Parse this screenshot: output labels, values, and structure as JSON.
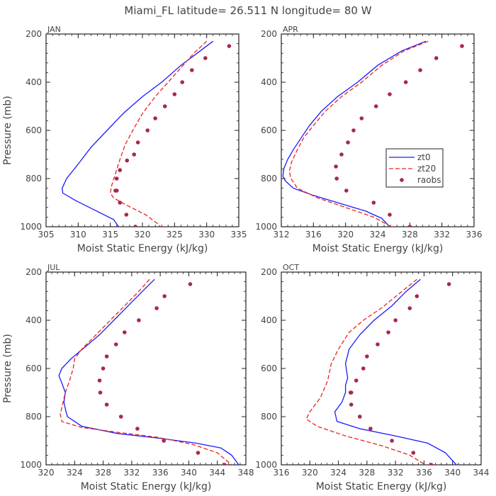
{
  "figure": {
    "title": "Miami_FL   latitude= 26.511 N longitude= 80 W",
    "series_names": [
      "zt0",
      "zt20",
      "raobs"
    ],
    "colors": {
      "zt0": "#1a1aff",
      "zt20": "#e8261e",
      "raobs": "#a8284a"
    }
  },
  "chart_data": [
    {
      "type": "line",
      "panel": "JAN",
      "title": "JAN",
      "xlabel": "Moist Static Energy (kJ/kg)",
      "ylabel": "Pressure (mb)",
      "xlim": [
        305,
        335
      ],
      "ylim": [
        1000,
        200
      ],
      "xticks": [
        305,
        310,
        315,
        320,
        325,
        330,
        335
      ],
      "yticks": [
        200,
        400,
        600,
        800,
        1000
      ],
      "legend": false,
      "series": [
        {
          "name": "zt0",
          "style": "solid",
          "x": [
            331.0,
            328.5,
            326.0,
            323.0,
            320.0,
            317.0,
            314.5,
            312.0,
            310.0,
            308.2,
            307.5,
            307.6,
            309.5,
            312.5,
            315.5,
            316.7
          ],
          "y": [
            230,
            280,
            330,
            400,
            460,
            530,
            600,
            670,
            740,
            800,
            840,
            860,
            890,
            930,
            970,
            1015
          ]
        },
        {
          "name": "zt20",
          "style": "dashed",
          "x": [
            330.0,
            328.0,
            326.0,
            324.0,
            322.0,
            320.0,
            318.5,
            317.3,
            316.5,
            315.8,
            315.2,
            315.0,
            315.5,
            317.5,
            320.5,
            322.5,
            323.2
          ],
          "y": [
            230,
            280,
            340,
            400,
            460,
            530,
            600,
            660,
            720,
            780,
            830,
            860,
            880,
            910,
            950,
            990,
            1015
          ]
        },
        {
          "name": "raobs",
          "style": "dots",
          "x": [
            333.5,
            329.8,
            327.7,
            326.2,
            325.0,
            323.5,
            322.0,
            320.8,
            319.3,
            318.7,
            317.6,
            316.5,
            316.0,
            315.8,
            316.0,
            316.5,
            317.5,
            318.9
          ],
          "y": [
            250,
            300,
            350,
            400,
            450,
            500,
            550,
            600,
            650,
            700,
            725,
            765,
            800,
            850,
            850,
            900,
            950,
            1000
          ]
        }
      ]
    },
    {
      "type": "line",
      "panel": "APR",
      "title": "APR",
      "xlabel": "Moist Static Energy (kJ/kg)",
      "ylabel": "",
      "xlim": [
        312,
        336
      ],
      "ylim": [
        1000,
        200
      ],
      "xticks": [
        312,
        316,
        320,
        324,
        328,
        332,
        336
      ],
      "yticks": [
        200,
        400,
        600,
        800,
        1000
      ],
      "legend": true,
      "legend_position": "right-middle",
      "series": [
        {
          "name": "zt0",
          "style": "solid",
          "x": [
            330.0,
            327.0,
            324.0,
            321.5,
            319.0,
            317.0,
            315.5,
            314.5,
            313.5,
            312.8,
            312.3,
            312.2,
            312.5,
            313.5,
            316.0,
            319.0,
            322.5,
            324.5,
            325.5
          ],
          "y": [
            230,
            270,
            330,
            400,
            460,
            520,
            580,
            630,
            680,
            720,
            760,
            790,
            810,
            840,
            870,
            900,
            935,
            965,
            1000
          ]
        },
        {
          "name": "zt20",
          "style": "dashed",
          "x": [
            330.3,
            327.3,
            324.5,
            322.0,
            319.5,
            317.5,
            316.0,
            314.8,
            314.0,
            313.3,
            313.0,
            313.2,
            314.0,
            316.5,
            320.0,
            323.5,
            326.5
          ],
          "y": [
            230,
            270,
            330,
            400,
            460,
            520,
            580,
            630,
            680,
            730,
            770,
            800,
            840,
            880,
            920,
            960,
            1015
          ]
        },
        {
          "name": "raobs",
          "style": "dots",
          "x": [
            334.5,
            331.3,
            329.3,
            327.5,
            325.5,
            323.8,
            322.0,
            321.0,
            320.3,
            319.5,
            318.8,
            318.9,
            320.1,
            323.5,
            325.5,
            328.0
          ],
          "y": [
            250,
            300,
            350,
            400,
            450,
            500,
            550,
            600,
            650,
            700,
            750,
            800,
            850,
            900,
            950,
            1000
          ]
        }
      ]
    },
    {
      "type": "line",
      "panel": "JUL",
      "title": "JUL",
      "xlabel": "Moist Static Energy (kJ/kg)",
      "ylabel": "Pressure (mb)",
      "xlim": [
        320,
        348
      ],
      "ylim": [
        1000,
        200
      ],
      "xticks": [
        320,
        324,
        328,
        332,
        336,
        340,
        344,
        348
      ],
      "yticks": [
        200,
        400,
        600,
        800,
        1000
      ],
      "legend": false,
      "series": [
        {
          "name": "zt0",
          "style": "solid",
          "x": [
            335.2,
            333.5,
            331.5,
            329.5,
            327.5,
            325.5,
            323.5,
            322.2,
            321.8,
            322.2,
            322.7,
            322.5,
            322.8,
            323.0,
            325.0,
            330.0,
            336.0,
            341.0,
            344.5,
            346.0,
            347.0
          ],
          "y": [
            230,
            280,
            340,
            400,
            460,
            510,
            560,
            600,
            630,
            660,
            700,
            740,
            780,
            800,
            840,
            870,
            890,
            910,
            930,
            960,
            1000
          ]
        },
        {
          "name": "zt20",
          "style": "dashed",
          "x": [
            334.5,
            333.0,
            331.0,
            329.0,
            327.0,
            325.0,
            324.0,
            323.8,
            323.3,
            322.7,
            322.3,
            322.0,
            322.2,
            325.0,
            330.0,
            335.5,
            340.5,
            344.0,
            346.0
          ],
          "y": [
            230,
            280,
            340,
            400,
            460,
            520,
            560,
            600,
            650,
            700,
            750,
            790,
            820,
            845,
            865,
            885,
            915,
            950,
            1000
          ]
        },
        {
          "name": "raobs",
          "style": "dots",
          "x": [
            340.2,
            336.6,
            335.5,
            333.0,
            331.0,
            329.8,
            328.5,
            328.0,
            327.5,
            327.6,
            328.5,
            330.5,
            332.8,
            336.5,
            341.3,
            345.0
          ],
          "y": [
            250,
            300,
            350,
            400,
            450,
            500,
            550,
            600,
            650,
            700,
            750,
            800,
            850,
            900,
            950,
            1000
          ]
        }
      ]
    },
    {
      "type": "line",
      "panel": "OCT",
      "title": "OCT",
      "xlabel": "Moist Static Energy (kJ/kg)",
      "ylabel": "",
      "xlim": [
        316,
        344
      ],
      "ylim": [
        1000,
        200
      ],
      "xticks": [
        316,
        320,
        324,
        328,
        332,
        336,
        340,
        344
      ],
      "yticks": [
        200,
        400,
        600,
        800,
        1000
      ],
      "legend": false,
      "series": [
        {
          "name": "zt0",
          "style": "solid",
          "x": [
            335.5,
            333.5,
            331.5,
            329.0,
            327.0,
            325.5,
            325.0,
            325.3,
            325.0,
            325.0,
            324.5,
            323.5,
            323.8,
            327.0,
            332.0,
            336.5,
            339.0,
            341.0
          ],
          "y": [
            230,
            280,
            340,
            400,
            460,
            520,
            580,
            640,
            670,
            700,
            740,
            780,
            820,
            850,
            880,
            910,
            950,
            1015
          ]
        },
        {
          "name": "zt20",
          "style": "dashed",
          "x": [
            335.0,
            332.5,
            330.0,
            327.5,
            325.5,
            324.0,
            323.0,
            322.5,
            321.5,
            320.0,
            319.5,
            321.0,
            325.0,
            330.0,
            334.0,
            337.0
          ],
          "y": [
            230,
            290,
            350,
            400,
            450,
            520,
            580,
            650,
            720,
            780,
            810,
            840,
            880,
            920,
            960,
            1015
          ]
        },
        {
          "name": "raobs",
          "style": "dots",
          "x": [
            339.5,
            335.0,
            334.0,
            332.0,
            331.0,
            329.5,
            328.0,
            327.5,
            326.5,
            325.8,
            325.7,
            325.8,
            327.0,
            328.5,
            331.5,
            334.5,
            337.0
          ],
          "y": [
            250,
            300,
            350,
            400,
            450,
            500,
            550,
            600,
            650,
            700,
            700,
            750,
            800,
            850,
            900,
            950,
            1000
          ]
        }
      ]
    }
  ]
}
